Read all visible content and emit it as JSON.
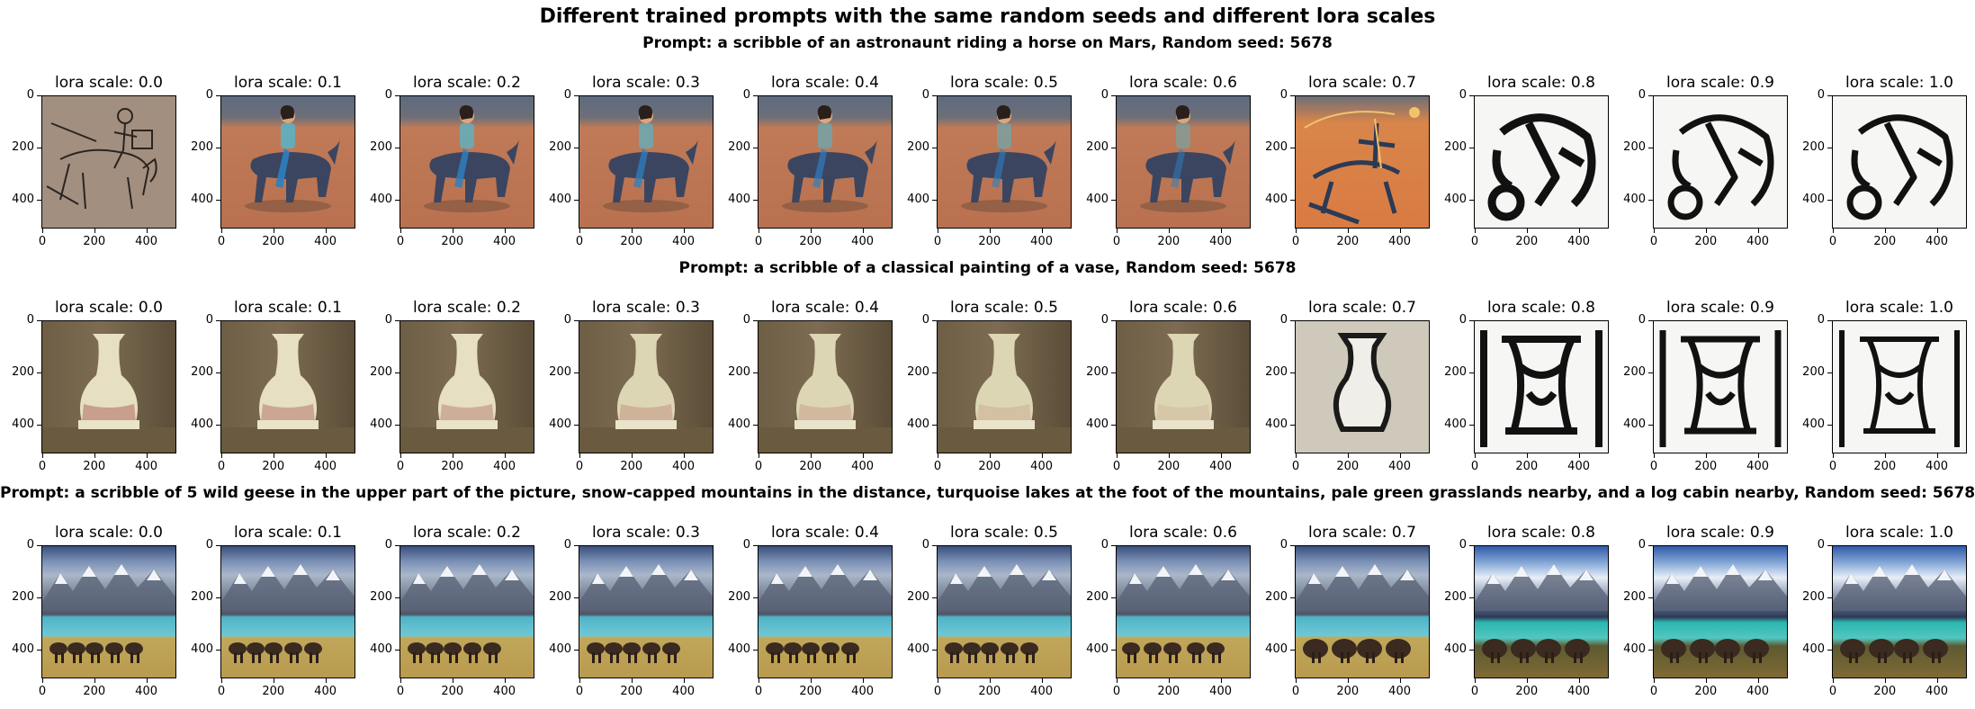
{
  "figure": {
    "suptitle": "Different trained prompts with the same random seeds and different lora scales",
    "rows": [
      {
        "prompt": "Prompt: a scribble of an astronaunt riding a horse on Mars, Random seed: 5678",
        "panels": [
          "lora scale: 0.0",
          "lora scale: 0.1",
          "lora scale: 0.2",
          "lora scale: 0.3",
          "lora scale: 0.4",
          "lora scale: 0.5",
          "lora scale: 0.6",
          "lora scale: 0.7",
          "lora scale: 0.8",
          "lora scale: 0.9",
          "lora scale: 1.0"
        ]
      },
      {
        "prompt": "Prompt: a scribble of a classical painting of a vase, Random seed: 5678",
        "panels": [
          "lora scale: 0.0",
          "lora scale: 0.1",
          "lora scale: 0.2",
          "lora scale: 0.3",
          "lora scale: 0.4",
          "lora scale: 0.5",
          "lora scale: 0.6",
          "lora scale: 0.7",
          "lora scale: 0.8",
          "lora scale: 0.9",
          "lora scale: 1.0"
        ]
      },
      {
        "prompt": "Prompt: a scribble of 5 wild geese in the upper part of the picture, snow-capped mountains in the distance, turquoise lakes at the foot of the mountains, pale green grasslands nearby, and a log cabin nearby, Random seed: 5678",
        "panels": [
          "lora scale: 0.0",
          "lora scale: 0.1",
          "lora scale: 0.2",
          "lora scale: 0.3",
          "lora scale: 0.4",
          "lora scale: 0.5",
          "lora scale: 0.6",
          "lora scale: 0.7",
          "lora scale: 0.8",
          "lora scale: 0.9",
          "lora scale: 1.0"
        ]
      }
    ],
    "y_ticks": [
      "0",
      "200",
      "400"
    ],
    "x_ticks": [
      "0",
      "200",
      "400"
    ]
  }
}
